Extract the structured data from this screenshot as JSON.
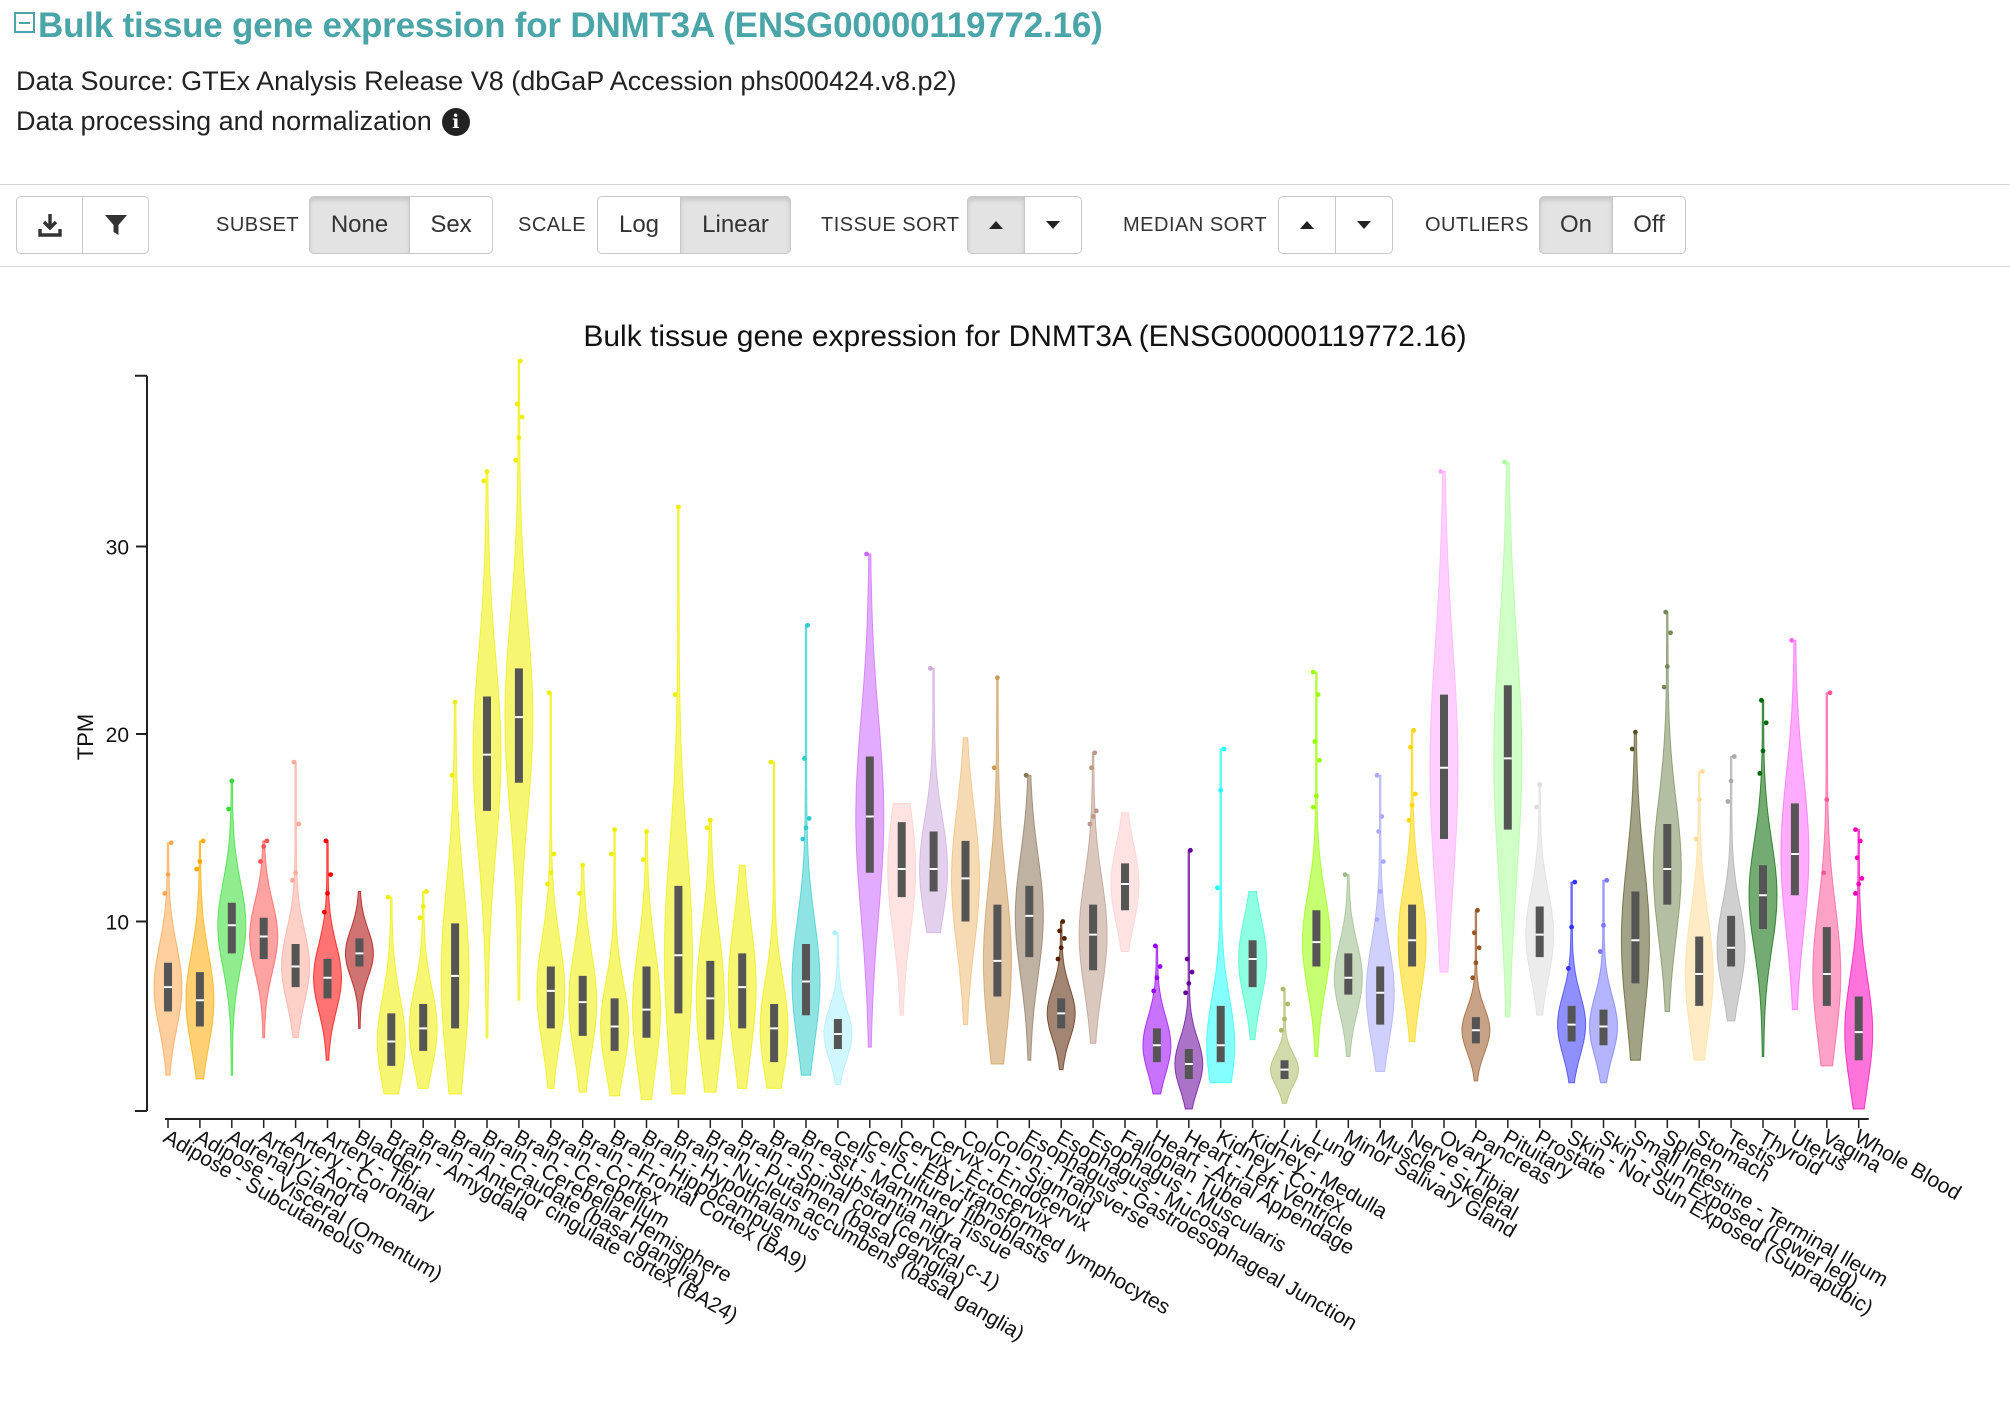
{
  "header": {
    "title": "Bulk tissue gene expression for DNMT3A (ENSG00000119772.16)",
    "data_source": "Data Source: GTEx Analysis Release V8 (dbGaP Accession phs000424.v8.p2)",
    "processing": "Data processing and normalization"
  },
  "toolbar": {
    "subset_label": "SUBSET",
    "subset_options": [
      "None",
      "Sex"
    ],
    "subset_selected": "None",
    "scale_label": "SCALE",
    "scale_options": [
      "Log",
      "Linear"
    ],
    "scale_selected": "Linear",
    "tissue_sort_label": "TISSUE SORT",
    "median_sort_label": "MEDIAN SORT",
    "outliers_label": "OUTLIERS",
    "outliers_options": [
      "On",
      "Off"
    ],
    "outliers_selected": "On"
  },
  "icons": {
    "collapse": "collapse-square-icon",
    "info": "info-circle-icon",
    "download": "download-icon",
    "filter": "filter-icon",
    "sort_up": "caret-up-icon",
    "sort_down": "caret-down-icon"
  },
  "chart_data": {
    "type": "violin",
    "title": "Bulk tissue gene expression for DNMT3A (ENSG00000119772.16)",
    "xlabel": "",
    "ylabel": "TPM",
    "ylim": [
      0,
      39
    ],
    "yticks": [
      10,
      20,
      30
    ],
    "grid": false,
    "legend": "none",
    "tissues": [
      {
        "name": "Adipose - Subcutaneous",
        "color": "#FFA54F",
        "min": 1.8,
        "q1": 5.2,
        "median": 6.5,
        "q3": 7.8,
        "max": 14.2,
        "outliers": [
          11.5,
          12.5,
          14.2
        ]
      },
      {
        "name": "Adipose - Visceral (Omentum)",
        "color": "#FFAA00",
        "min": 1.6,
        "q1": 4.4,
        "median": 5.8,
        "q3": 7.3,
        "max": 14.3,
        "outliers": [
          12.8,
          13.2,
          14.3
        ]
      },
      {
        "name": "Adrenal Gland",
        "color": "#33DD33",
        "min": 1.8,
        "q1": 8.3,
        "median": 9.8,
        "q3": 11.0,
        "max": 17.5,
        "outliers": [
          16.0,
          17.5
        ]
      },
      {
        "name": "Artery - Aorta",
        "color": "#FF5555",
        "min": 3.8,
        "q1": 8.0,
        "median": 9.2,
        "q3": 10.2,
        "max": 14.3,
        "outliers": [
          13.2,
          14.0,
          14.3
        ]
      },
      {
        "name": "Artery - Coronary",
        "color": "#FFAA99",
        "min": 3.8,
        "q1": 6.5,
        "median": 7.6,
        "q3": 8.8,
        "max": 18.5,
        "outliers": [
          12.2,
          12.6,
          15.2,
          18.5
        ]
      },
      {
        "name": "Artery - Tibial",
        "color": "#FF0000",
        "min": 2.6,
        "q1": 5.9,
        "median": 7.0,
        "q3": 8.0,
        "max": 14.3,
        "outliers": [
          10.5,
          11.5,
          12.5,
          14.3
        ]
      },
      {
        "name": "Bladder",
        "color": "#AA0000",
        "min": 4.3,
        "q1": 7.6,
        "median": 8.3,
        "q3": 9.1,
        "max": 11.6,
        "outliers": []
      },
      {
        "name": "Brain - Amygdala",
        "color": "#EEEE00",
        "min": 0.8,
        "q1": 2.3,
        "median": 3.6,
        "q3": 5.1,
        "max": 11.3,
        "outliers": [
          11.3
        ]
      },
      {
        "name": "Brain - Anterior cingulate cortex (BA24)",
        "color": "#EEEE00",
        "min": 1.1,
        "q1": 3.1,
        "median": 4.3,
        "q3": 5.6,
        "max": 11.6,
        "outliers": [
          10.2,
          10.8,
          11.6
        ]
      },
      {
        "name": "Brain - Caudate (basal ganglia)",
        "color": "#EEEE00",
        "min": 0.8,
        "q1": 4.3,
        "median": 7.1,
        "q3": 9.9,
        "max": 21.7,
        "outliers": [
          17.8,
          21.7
        ]
      },
      {
        "name": "Brain - Cerebellar Hemisphere",
        "color": "#EEEE00",
        "min": 3.8,
        "q1": 15.9,
        "median": 18.9,
        "q3": 22.0,
        "max": 34.0,
        "outliers": [
          33.5,
          34.0
        ]
      },
      {
        "name": "Brain - Cerebellum",
        "color": "#EEEE00",
        "min": 5.8,
        "q1": 17.4,
        "median": 20.9,
        "q3": 23.5,
        "max": 39.9,
        "outliers": [
          34.6,
          35.8,
          36.9,
          37.6,
          39.9
        ]
      },
      {
        "name": "Brain - Cortex",
        "color": "#EEEE00",
        "min": 1.1,
        "q1": 4.3,
        "median": 6.3,
        "q3": 7.6,
        "max": 22.2,
        "outliers": [
          12.0,
          12.6,
          13.6,
          22.2
        ]
      },
      {
        "name": "Brain - Frontal Cortex (BA9)",
        "color": "#EEEE00",
        "min": 0.9,
        "q1": 3.9,
        "median": 5.7,
        "q3": 7.1,
        "max": 13.0,
        "outliers": [
          11.5,
          13.0
        ]
      },
      {
        "name": "Brain - Hippocampus",
        "color": "#EEEE00",
        "min": 0.7,
        "q1": 3.1,
        "median": 4.4,
        "q3": 5.9,
        "max": 14.9,
        "outliers": [
          13.6,
          14.9
        ]
      },
      {
        "name": "Brain - Hypothalamus",
        "color": "#EEEE00",
        "min": 0.5,
        "q1": 3.8,
        "median": 5.3,
        "q3": 7.6,
        "max": 14.8,
        "outliers": [
          13.3,
          14.8
        ]
      },
      {
        "name": "Brain - Nucleus accumbens (basal ganglia)",
        "color": "#EEEE00",
        "min": 0.8,
        "q1": 5.1,
        "median": 8.2,
        "q3": 11.9,
        "max": 32.1,
        "outliers": [
          22.1,
          32.1
        ]
      },
      {
        "name": "Brain - Putamen (basal ganglia)",
        "color": "#EEEE00",
        "min": 0.9,
        "q1": 3.7,
        "median": 5.9,
        "q3": 7.9,
        "max": 15.4,
        "outliers": [
          15.0,
          15.4
        ]
      },
      {
        "name": "Brain - Spinal cord (cervical c-1)",
        "color": "#EEEE00",
        "min": 1.1,
        "q1": 4.3,
        "median": 6.5,
        "q3": 8.3,
        "max": 13.0,
        "outliers": []
      },
      {
        "name": "Brain - Substantia nigra",
        "color": "#EEEE00",
        "min": 1.1,
        "q1": 2.5,
        "median": 4.3,
        "q3": 5.6,
        "max": 18.5,
        "outliers": [
          18.5
        ]
      },
      {
        "name": "Breast - Mammary Tissue",
        "color": "#33CCCC",
        "min": 1.8,
        "q1": 5.0,
        "median": 6.8,
        "q3": 8.8,
        "max": 25.8,
        "outliers": [
          14.4,
          15.0,
          15.5,
          18.7,
          25.8
        ]
      },
      {
        "name": "Cells - Cultured fibroblasts",
        "color": "#AAEEFF",
        "min": 1.3,
        "q1": 3.2,
        "median": 4.0,
        "q3": 4.8,
        "max": 9.4,
        "outliers": [
          9.4
        ]
      },
      {
        "name": "Cells - EBV-transformed lymphocytes",
        "color": "#CC66FF",
        "min": 3.3,
        "q1": 12.6,
        "median": 15.6,
        "q3": 18.8,
        "max": 29.6,
        "outliers": [
          29.6
        ]
      },
      {
        "name": "Cervix - Ectocervix",
        "color": "#FFCCCC",
        "min": 5.0,
        "q1": 11.3,
        "median": 12.8,
        "q3": 15.3,
        "max": 16.3,
        "outliers": []
      },
      {
        "name": "Cervix - Endocervix",
        "color": "#CCAADD",
        "min": 9.4,
        "q1": 11.6,
        "median": 12.8,
        "q3": 14.8,
        "max": 23.5,
        "outliers": [
          23.5
        ]
      },
      {
        "name": "Colon - Sigmoid",
        "color": "#EEBB77",
        "min": 4.5,
        "q1": 10.0,
        "median": 12.3,
        "q3": 14.3,
        "max": 19.8,
        "outliers": []
      },
      {
        "name": "Colon - Transverse",
        "color": "#CC9955",
        "min": 2.4,
        "q1": 6.0,
        "median": 7.9,
        "q3": 10.9,
        "max": 23.0,
        "outliers": [
          18.2,
          23.0
        ]
      },
      {
        "name": "Esophagus - Gastroesophageal Junction",
        "color": "#8B7355",
        "min": 2.6,
        "q1": 8.1,
        "median": 10.3,
        "q3": 11.9,
        "max": 17.8,
        "outliers": [
          17.8
        ]
      },
      {
        "name": "Esophagus - Mucosa",
        "color": "#552200",
        "min": 2.1,
        "q1": 4.3,
        "median": 5.1,
        "q3": 5.9,
        "max": 10.0,
        "outliers": [
          8.0,
          8.6,
          9.1,
          9.5,
          10.0
        ]
      },
      {
        "name": "Esophagus - Muscularis",
        "color": "#BB9988",
        "min": 3.5,
        "q1": 7.4,
        "median": 9.3,
        "q3": 10.9,
        "max": 19.0,
        "outliers": [
          15.2,
          15.6,
          15.9,
          18.2,
          19.0
        ]
      },
      {
        "name": "Fallopian Tube",
        "color": "#FFCCCC",
        "min": 8.4,
        "q1": 10.6,
        "median": 12.0,
        "q3": 13.1,
        "max": 15.8,
        "outliers": []
      },
      {
        "name": "Heart - Atrial Appendage",
        "color": "#9900FF",
        "min": 0.8,
        "q1": 2.5,
        "median": 3.4,
        "q3": 4.3,
        "max": 8.7,
        "outliers": [
          6.3,
          7.0,
          7.6,
          8.7
        ]
      },
      {
        "name": "Heart - Left Ventricle",
        "color": "#660099",
        "min": 0.0,
        "q1": 1.6,
        "median": 2.4,
        "q3": 3.2,
        "max": 13.8,
        "outliers": [
          6.2,
          6.7,
          7.3,
          8.0,
          13.8
        ]
      },
      {
        "name": "Kidney - Cortex",
        "color": "#22FFFF",
        "min": 1.4,
        "q1": 2.5,
        "median": 3.4,
        "q3": 5.5,
        "max": 19.2,
        "outliers": [
          11.8,
          17.0,
          19.2
        ]
      },
      {
        "name": "Kidney - Medulla",
        "color": "#33FFCC",
        "min": 3.7,
        "q1": 6.5,
        "median": 8.0,
        "q3": 9.0,
        "max": 11.6,
        "outliers": []
      },
      {
        "name": "Liver",
        "color": "#AABB66",
        "min": 0.3,
        "q1": 1.6,
        "median": 2.1,
        "q3": 2.6,
        "max": 6.4,
        "outliers": [
          4.2,
          4.8,
          5.6,
          6.4
        ]
      },
      {
        "name": "Lung",
        "color": "#99FF00",
        "min": 2.8,
        "q1": 7.6,
        "median": 8.9,
        "q3": 10.6,
        "max": 23.3,
        "outliers": [
          16.1,
          16.7,
          18.6,
          19.6,
          22.1,
          23.3
        ]
      },
      {
        "name": "Minor Salivary Gland",
        "color": "#99BB88",
        "min": 2.8,
        "q1": 6.1,
        "median": 7.0,
        "q3": 8.3,
        "max": 12.5,
        "outliers": [
          12.5
        ]
      },
      {
        "name": "Muscle - Skeletal",
        "color": "#AAAAFF",
        "min": 2.0,
        "q1": 4.5,
        "median": 6.2,
        "q3": 7.6,
        "max": 17.8,
        "outliers": [
          10.1,
          11.6,
          13.2,
          14.8,
          15.6,
          17.8
        ]
      },
      {
        "name": "Nerve - Tibial",
        "color": "#FFD700",
        "min": 3.6,
        "q1": 7.6,
        "median": 9.0,
        "q3": 10.9,
        "max": 20.2,
        "outliers": [
          15.4,
          16.2,
          16.8,
          19.3,
          20.2
        ]
      },
      {
        "name": "Ovary",
        "color": "#FFAAFF",
        "min": 7.3,
        "q1": 14.4,
        "median": 18.2,
        "q3": 22.1,
        "max": 34.0,
        "outliers": [
          34.0
        ]
      },
      {
        "name": "Pancreas",
        "color": "#995522",
        "min": 1.5,
        "q1": 3.5,
        "median": 4.2,
        "q3": 4.9,
        "max": 10.6,
        "outliers": [
          7.0,
          7.8,
          8.6,
          9.4,
          10.6
        ]
      },
      {
        "name": "Pituitary",
        "color": "#AAFF99",
        "min": 4.9,
        "q1": 14.9,
        "median": 18.7,
        "q3": 22.6,
        "max": 34.5,
        "outliers": [
          34.5
        ]
      },
      {
        "name": "Prostate",
        "color": "#DDDDDD",
        "min": 5.0,
        "q1": 8.1,
        "median": 9.3,
        "q3": 10.8,
        "max": 17.3,
        "outliers": [
          16.1,
          17.3
        ]
      },
      {
        "name": "Skin - Not Sun Exposed (Suprapubic)",
        "color": "#3333FF",
        "min": 1.4,
        "q1": 3.6,
        "median": 4.5,
        "q3": 5.5,
        "max": 12.1,
        "outliers": [
          7.5,
          9.7,
          12.1
        ]
      },
      {
        "name": "Skin - Sun Exposed (Lower leg)",
        "color": "#7777FF",
        "min": 1.4,
        "q1": 3.4,
        "median": 4.4,
        "q3": 5.3,
        "max": 12.2,
        "outliers": [
          8.4,
          9.8,
          12.2
        ]
      },
      {
        "name": "Small Intestine - Terminal Ileum",
        "color": "#555522",
        "min": 2.6,
        "q1": 6.7,
        "median": 9.0,
        "q3": 11.6,
        "max": 20.1,
        "outliers": [
          19.2,
          20.1
        ]
      },
      {
        "name": "Spleen",
        "color": "#778855",
        "min": 5.2,
        "q1": 10.9,
        "median": 12.8,
        "q3": 15.2,
        "max": 26.5,
        "outliers": [
          22.5,
          23.6,
          25.4,
          26.5
        ]
      },
      {
        "name": "Stomach",
        "color": "#FFDD99",
        "min": 2.6,
        "q1": 5.5,
        "median": 7.2,
        "q3": 9.2,
        "max": 18.0,
        "outliers": [
          14.4,
          16.5,
          18.0
        ]
      },
      {
        "name": "Testis",
        "color": "#AAAAAA",
        "min": 4.7,
        "q1": 7.6,
        "median": 8.6,
        "q3": 10.3,
        "max": 18.8,
        "outliers": [
          16.4,
          17.5,
          18.8
        ]
      },
      {
        "name": "Thyroid",
        "color": "#006600",
        "min": 2.8,
        "q1": 9.6,
        "median": 11.4,
        "q3": 13.0,
        "max": 21.8,
        "outliers": [
          17.9,
          19.1,
          20.6,
          21.8
        ]
      },
      {
        "name": "Uterus",
        "color": "#FF66FF",
        "min": 5.3,
        "q1": 11.4,
        "median": 13.6,
        "q3": 16.3,
        "max": 25.0,
        "outliers": [
          25.0
        ]
      },
      {
        "name": "Vagina",
        "color": "#FF5599",
        "min": 2.3,
        "q1": 5.5,
        "median": 7.2,
        "q3": 9.7,
        "max": 22.2,
        "outliers": [
          12.6,
          16.5,
          22.2
        ]
      },
      {
        "name": "Whole Blood",
        "color": "#FF00BB",
        "min": 0.0,
        "q1": 2.6,
        "median": 4.1,
        "q3": 6.0,
        "max": 14.9,
        "outliers": [
          11.5,
          12.0,
          12.3,
          13.4,
          14.3,
          14.9
        ]
      }
    ]
  }
}
